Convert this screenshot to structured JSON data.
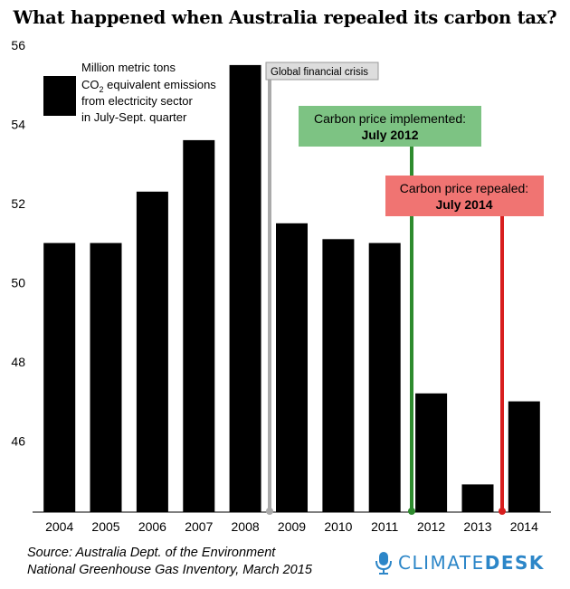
{
  "title": "What happened when Australia repealed its carbon tax?",
  "legend": {
    "line1": "Million metric tons",
    "line2_pre": "CO",
    "line2_sub": "2",
    "line2_post": " equivalent emissions",
    "line3": "from electricity sector",
    "line4": "in July-Sept. quarter"
  },
  "annotations": [
    {
      "text": "Global financial crisis",
      "color": "#aaaaaa",
      "box": "#dddddd"
    },
    {
      "line1": "Carbon price implemented:",
      "line2": "July 2012",
      "color": "#2e8b2e",
      "box": "#7dc383"
    },
    {
      "line1": "Carbon price repealed:",
      "line2": "July 2014",
      "color": "#d81e1e",
      "box": "#f07472"
    }
  ],
  "source": {
    "line1": "Source: Australia Dept. of the Environment",
    "line2": "National Greenhouse Gas Inventory, March 2015"
  },
  "brand": {
    "part1": "CLIMATE",
    "part2": "DESK",
    "color": "#2c86c8"
  },
  "chart_data": {
    "type": "bar",
    "categories": [
      "2004",
      "2005",
      "2006",
      "2007",
      "2008",
      "2009",
      "2010",
      "2011",
      "2012",
      "2013",
      "2014"
    ],
    "values": [
      51.0,
      51.0,
      52.3,
      53.6,
      55.5,
      51.5,
      51.1,
      51.0,
      47.2,
      44.9,
      47.0
    ],
    "ylim": [
      44.2,
      56
    ],
    "yticks": [
      46,
      48,
      50,
      52,
      54,
      56
    ],
    "grid": false,
    "bar_color": "#000000"
  }
}
